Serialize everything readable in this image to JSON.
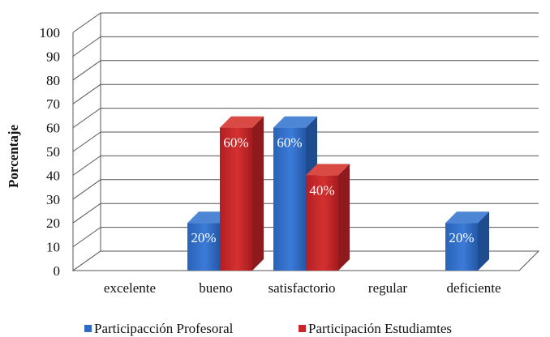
{
  "chart_data": {
    "type": "bar",
    "title": "",
    "xlabel": "",
    "ylabel": "Porcentaje",
    "ylim": [
      0,
      100
    ],
    "yticks": [
      0,
      10,
      20,
      30,
      40,
      50,
      60,
      70,
      80,
      90,
      100
    ],
    "grid": true,
    "legend_position": "bottom",
    "categories": [
      "excelente",
      "bueno",
      "satisfactorio",
      "regular",
      "deficiente"
    ],
    "series": [
      {
        "name": "Participacción Profesoral",
        "color": "#2E6BC6",
        "values": [
          0,
          20,
          60,
          0,
          20
        ],
        "labels": [
          "",
          "20%",
          "60%",
          "",
          "20%"
        ]
      },
      {
        "name": "Participación Estudiamtes",
        "color": "#C8262A",
        "values": [
          0,
          60,
          40,
          0,
          0
        ],
        "labels": [
          "",
          "60%",
          "40%",
          "",
          ""
        ]
      }
    ]
  }
}
